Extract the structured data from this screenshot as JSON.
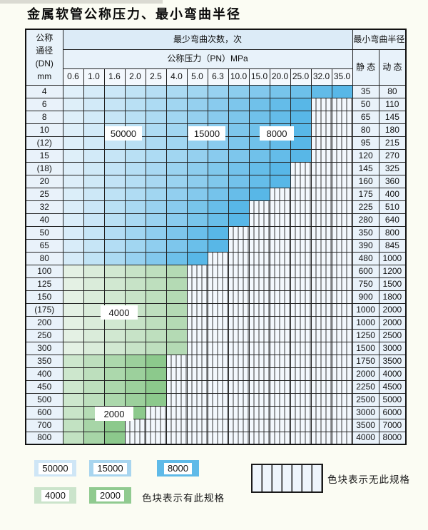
{
  "page_title": "金属软管公称压力、最小弯曲半径",
  "table": {
    "dn_header_lines": [
      "公称",
      "通径",
      "(DN)",
      "mm"
    ],
    "bend_times_header": "最少弯曲次数，次",
    "pressure_header": "公称压力（PN）MPa",
    "radius_header": "最小弯曲半径",
    "static_label": "静 态",
    "dynamic_label": "动 态",
    "pressure_columns": [
      "0.6",
      "1.0",
      "1.6",
      "2.0",
      "2.5",
      "4.0",
      "5.0",
      "6.3",
      "10.0",
      "15.0",
      "20.0",
      "25.0",
      "32.0",
      "35.0"
    ],
    "rows": [
      {
        "dn": "4",
        "max_pressure_colored": "35.0",
        "band": "blue",
        "static": "35",
        "dynamic": "80"
      },
      {
        "dn": "6",
        "max_pressure_colored": "25.0",
        "band": "blue",
        "static": "50",
        "dynamic": "110"
      },
      {
        "dn": "8",
        "max_pressure_colored": "25.0",
        "band": "blue",
        "static": "65",
        "dynamic": "145"
      },
      {
        "dn": "10",
        "max_pressure_colored": "25.0",
        "band": "blue",
        "static": "80",
        "dynamic": "180"
      },
      {
        "dn": "(12)",
        "max_pressure_colored": "25.0",
        "band": "blue",
        "static": "95",
        "dynamic": "215"
      },
      {
        "dn": "15",
        "max_pressure_colored": "25.0",
        "band": "blue",
        "static": "120",
        "dynamic": "270"
      },
      {
        "dn": "(18)",
        "max_pressure_colored": "20.0",
        "band": "blue",
        "static": "145",
        "dynamic": "325"
      },
      {
        "dn": "20",
        "max_pressure_colored": "20.0",
        "band": "blue",
        "static": "160",
        "dynamic": "360"
      },
      {
        "dn": "25",
        "max_pressure_colored": "15.0",
        "band": "blue",
        "static": "175",
        "dynamic": "400"
      },
      {
        "dn": "32",
        "max_pressure_colored": "10.0",
        "band": "blue",
        "static": "225",
        "dynamic": "510"
      },
      {
        "dn": "40",
        "max_pressure_colored": "10.0",
        "band": "blue",
        "static": "280",
        "dynamic": "640"
      },
      {
        "dn": "50",
        "max_pressure_colored": "6.3",
        "band": "blue",
        "static": "350",
        "dynamic": "800"
      },
      {
        "dn": "65",
        "max_pressure_colored": "6.3",
        "band": "blue",
        "static": "390",
        "dynamic": "845"
      },
      {
        "dn": "80",
        "max_pressure_colored": "5.0",
        "band": "blue",
        "static": "480",
        "dynamic": "1000"
      },
      {
        "dn": "100",
        "max_pressure_colored": "4.0",
        "band": "green4000",
        "static": "600",
        "dynamic": "1200"
      },
      {
        "dn": "125",
        "max_pressure_colored": "4.0",
        "band": "green4000",
        "static": "750",
        "dynamic": "1500"
      },
      {
        "dn": "150",
        "max_pressure_colored": "4.0",
        "band": "green4000",
        "static": "900",
        "dynamic": "1800"
      },
      {
        "dn": "(175)",
        "max_pressure_colored": "4.0",
        "band": "green4000",
        "static": "1000",
        "dynamic": "2000"
      },
      {
        "dn": "200",
        "max_pressure_colored": "4.0",
        "band": "green4000",
        "static": "1000",
        "dynamic": "2000"
      },
      {
        "dn": "250",
        "max_pressure_colored": "4.0",
        "band": "green4000",
        "static": "1250",
        "dynamic": "2500"
      },
      {
        "dn": "300",
        "max_pressure_colored": "4.0",
        "band": "green4000",
        "static": "1500",
        "dynamic": "3000"
      },
      {
        "dn": "350",
        "max_pressure_colored": "2.5",
        "band": "green2000",
        "static": "1750",
        "dynamic": "3500"
      },
      {
        "dn": "400",
        "max_pressure_colored": "2.5",
        "band": "green2000",
        "static": "2000",
        "dynamic": "4000"
      },
      {
        "dn": "450",
        "max_pressure_colored": "2.5",
        "band": "green2000",
        "static": "2250",
        "dynamic": "4500"
      },
      {
        "dn": "500",
        "max_pressure_colored": "2.5",
        "band": "green2000",
        "static": "2500",
        "dynamic": "5000"
      },
      {
        "dn": "600",
        "max_pressure_colored": "2.0",
        "band": "green2000",
        "static": "3000",
        "dynamic": "6000"
      },
      {
        "dn": "700",
        "max_pressure_colored": "1.6",
        "band": "green2000",
        "static": "3500",
        "dynamic": "7000"
      },
      {
        "dn": "800",
        "max_pressure_colored": "1.6",
        "band": "green2000",
        "static": "4000",
        "dynamic": "8000"
      }
    ]
  },
  "legend": {
    "swatches": [
      {
        "label": "50000",
        "color": "#cfe6f6"
      },
      {
        "label": "15000",
        "color": "#a8d5ef"
      },
      {
        "label": "8000",
        "color": "#5fbae8"
      },
      {
        "label": "4000",
        "color": "#cbe4cb"
      },
      {
        "label": "2000",
        "color": "#90ca90"
      }
    ],
    "has_spec_text": "色块表示有此规格",
    "no_spec_text": "色块表示无此规格"
  },
  "colors": {
    "row_gradients": {
      "blue": [
        "#eaf4fb",
        "#58b7e7"
      ],
      "green4000": [
        "#edf5ed",
        "#b4dab4"
      ],
      "green2000": [
        "#ddeedd",
        "#8cc98c"
      ]
    },
    "hatch_bg": "#f3f8fd",
    "border": "#222222"
  }
}
